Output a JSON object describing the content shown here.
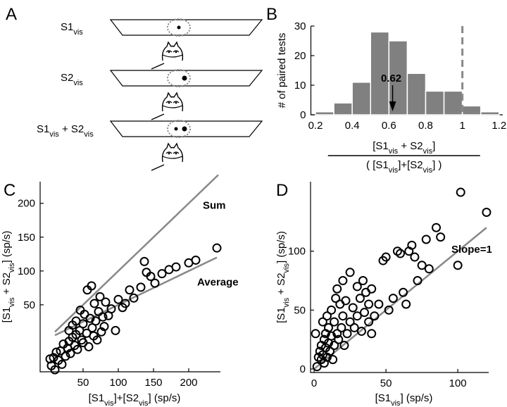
{
  "panel_a": {
    "letter": "A",
    "labels": [
      [
        "S1",
        "vis"
      ],
      [
        "S2",
        "vis"
      ],
      [
        "S1",
        "vis",
        " + S2",
        "vis"
      ]
    ]
  },
  "chart_data": [
    {
      "type": "histogram",
      "panel": "B",
      "ylabel": [
        "# of paired tests"
      ],
      "xlabel": {
        "numerator": [
          "[S1",
          "vis",
          " + S2",
          "vis",
          "]"
        ],
        "denominator": [
          "( [S1",
          "vis",
          "]+[S2",
          "vis",
          "] )"
        ]
      },
      "bins": [
        0.2,
        0.3,
        0.4,
        0.5,
        0.6,
        0.7,
        0.8,
        0.9,
        1.0,
        1.1,
        1.2
      ],
      "values": [
        1,
        4,
        11,
        28,
        25,
        14,
        8,
        8,
        3,
        1
      ],
      "color": "#808080",
      "xlim": [
        0.175,
        1.22
      ],
      "xticks": [
        0.2,
        0.4,
        0.6,
        0.8,
        1,
        1.2
      ],
      "ylim": [
        0,
        30
      ],
      "yticks": [
        0,
        10,
        20,
        30
      ],
      "reference_x": 1,
      "annotation": {
        "text": "0.62",
        "x": 0.62
      }
    },
    {
      "type": "scatter",
      "panel": "C",
      "ylabel": [
        "[S1",
        "vis",
        " + S2",
        "vis",
        "] (sp/s)"
      ],
      "xlabel": [
        "[S1",
        "vis",
        "]+[S2",
        "vis",
        "] (sp/s)"
      ],
      "xlim": [
        -11,
        245
      ],
      "xticks": [
        50,
        100,
        150,
        200
      ],
      "ylim": [
        -49,
        232
      ],
      "yticks": [
        50,
        100,
        150,
        200
      ],
      "x": [
        5,
        8,
        3,
        10,
        12,
        15,
        18,
        20,
        22,
        25,
        28,
        30,
        30,
        32,
        35,
        35,
        38,
        40,
        40,
        42,
        45,
        46,
        48,
        50,
        50,
        52,
        55,
        56,
        58,
        60,
        62,
        63,
        65,
        66,
        68,
        70,
        72,
        74,
        76,
        78,
        80,
        82,
        86,
        90,
        96,
        100,
        106,
        110,
        116,
        122,
        132,
        140,
        146,
        152,
        162,
        172,
        182,
        137,
        200,
        210,
        240
      ],
      "values": [
        -40,
        -28,
        -30,
        -46,
        -20,
        -32,
        -18,
        -38,
        -8,
        -26,
        -14,
        -4,
        12,
        -22,
        2,
        20,
        -10,
        6,
        26,
        -16,
        12,
        42,
        -2,
        -6,
        22,
        36,
        8,
        72,
        -12,
        30,
        78,
        16,
        4,
        52,
        26,
        -2,
        40,
        62,
        10,
        32,
        18,
        54,
        34,
        44,
        12,
        58,
        46,
        52,
        72,
        60,
        76,
        98,
        92,
        82,
        96,
        102,
        106,
        114,
        112,
        116,
        134
      ],
      "lines": [
        {
          "label": "Sum",
          "x": [
            10,
            242
          ],
          "values": [
            10,
            242
          ]
        },
        {
          "label": "Average",
          "x": [
            10,
            240
          ],
          "values": [
            5,
            120
          ]
        }
      ]
    },
    {
      "type": "scatter",
      "panel": "D",
      "ylabel": [
        "[S1",
        "vis",
        " + S2",
        "vis",
        "] (sp/s)"
      ],
      "xlabel": [
        "[S1",
        "vis",
        "] (sp/s)"
      ],
      "xlim": [
        -2.5,
        121.5
      ],
      "xticks": [
        0,
        50,
        100
      ],
      "ylim": [
        -3,
        159
      ],
      "yticks": [
        0,
        50,
        100
      ],
      "x": [
        2,
        1,
        3,
        4,
        5,
        5,
        6,
        6,
        7,
        7,
        8,
        8,
        9,
        9,
        10,
        10,
        11,
        12,
        12,
        13,
        14,
        14,
        15,
        16,
        16,
        17,
        18,
        19,
        20,
        20,
        21,
        22,
        23,
        25,
        25,
        27,
        28,
        30,
        30,
        32,
        33,
        34,
        35,
        36,
        38,
        38,
        40,
        40,
        42,
        45,
        48,
        50,
        52,
        55,
        58,
        60,
        62,
        64,
        66,
        68,
        70,
        72,
        75,
        78,
        80,
        85,
        88,
        100,
        102,
        120
      ],
      "values": [
        2,
        30,
        10,
        15,
        8,
        20,
        12,
        40,
        5,
        25,
        18,
        30,
        10,
        45,
        22,
        35,
        15,
        28,
        50,
        8,
        20,
        40,
        60,
        30,
        68,
        25,
        55,
        35,
        45,
        75,
        20,
        58,
        30,
        40,
        82,
        52,
        35,
        45,
        70,
        60,
        32,
        75,
        48,
        65,
        40,
        55,
        30,
        68,
        45,
        55,
        92,
        95,
        50,
        60,
        100,
        98,
        65,
        55,
        100,
        105,
        95,
        75,
        88,
        110,
        85,
        120,
        112,
        88,
        150,
        133
      ],
      "lines": [
        {
          "label": "Slope=1",
          "x": [
            0,
            120
          ],
          "values": [
            0,
            120
          ]
        }
      ]
    }
  ]
}
